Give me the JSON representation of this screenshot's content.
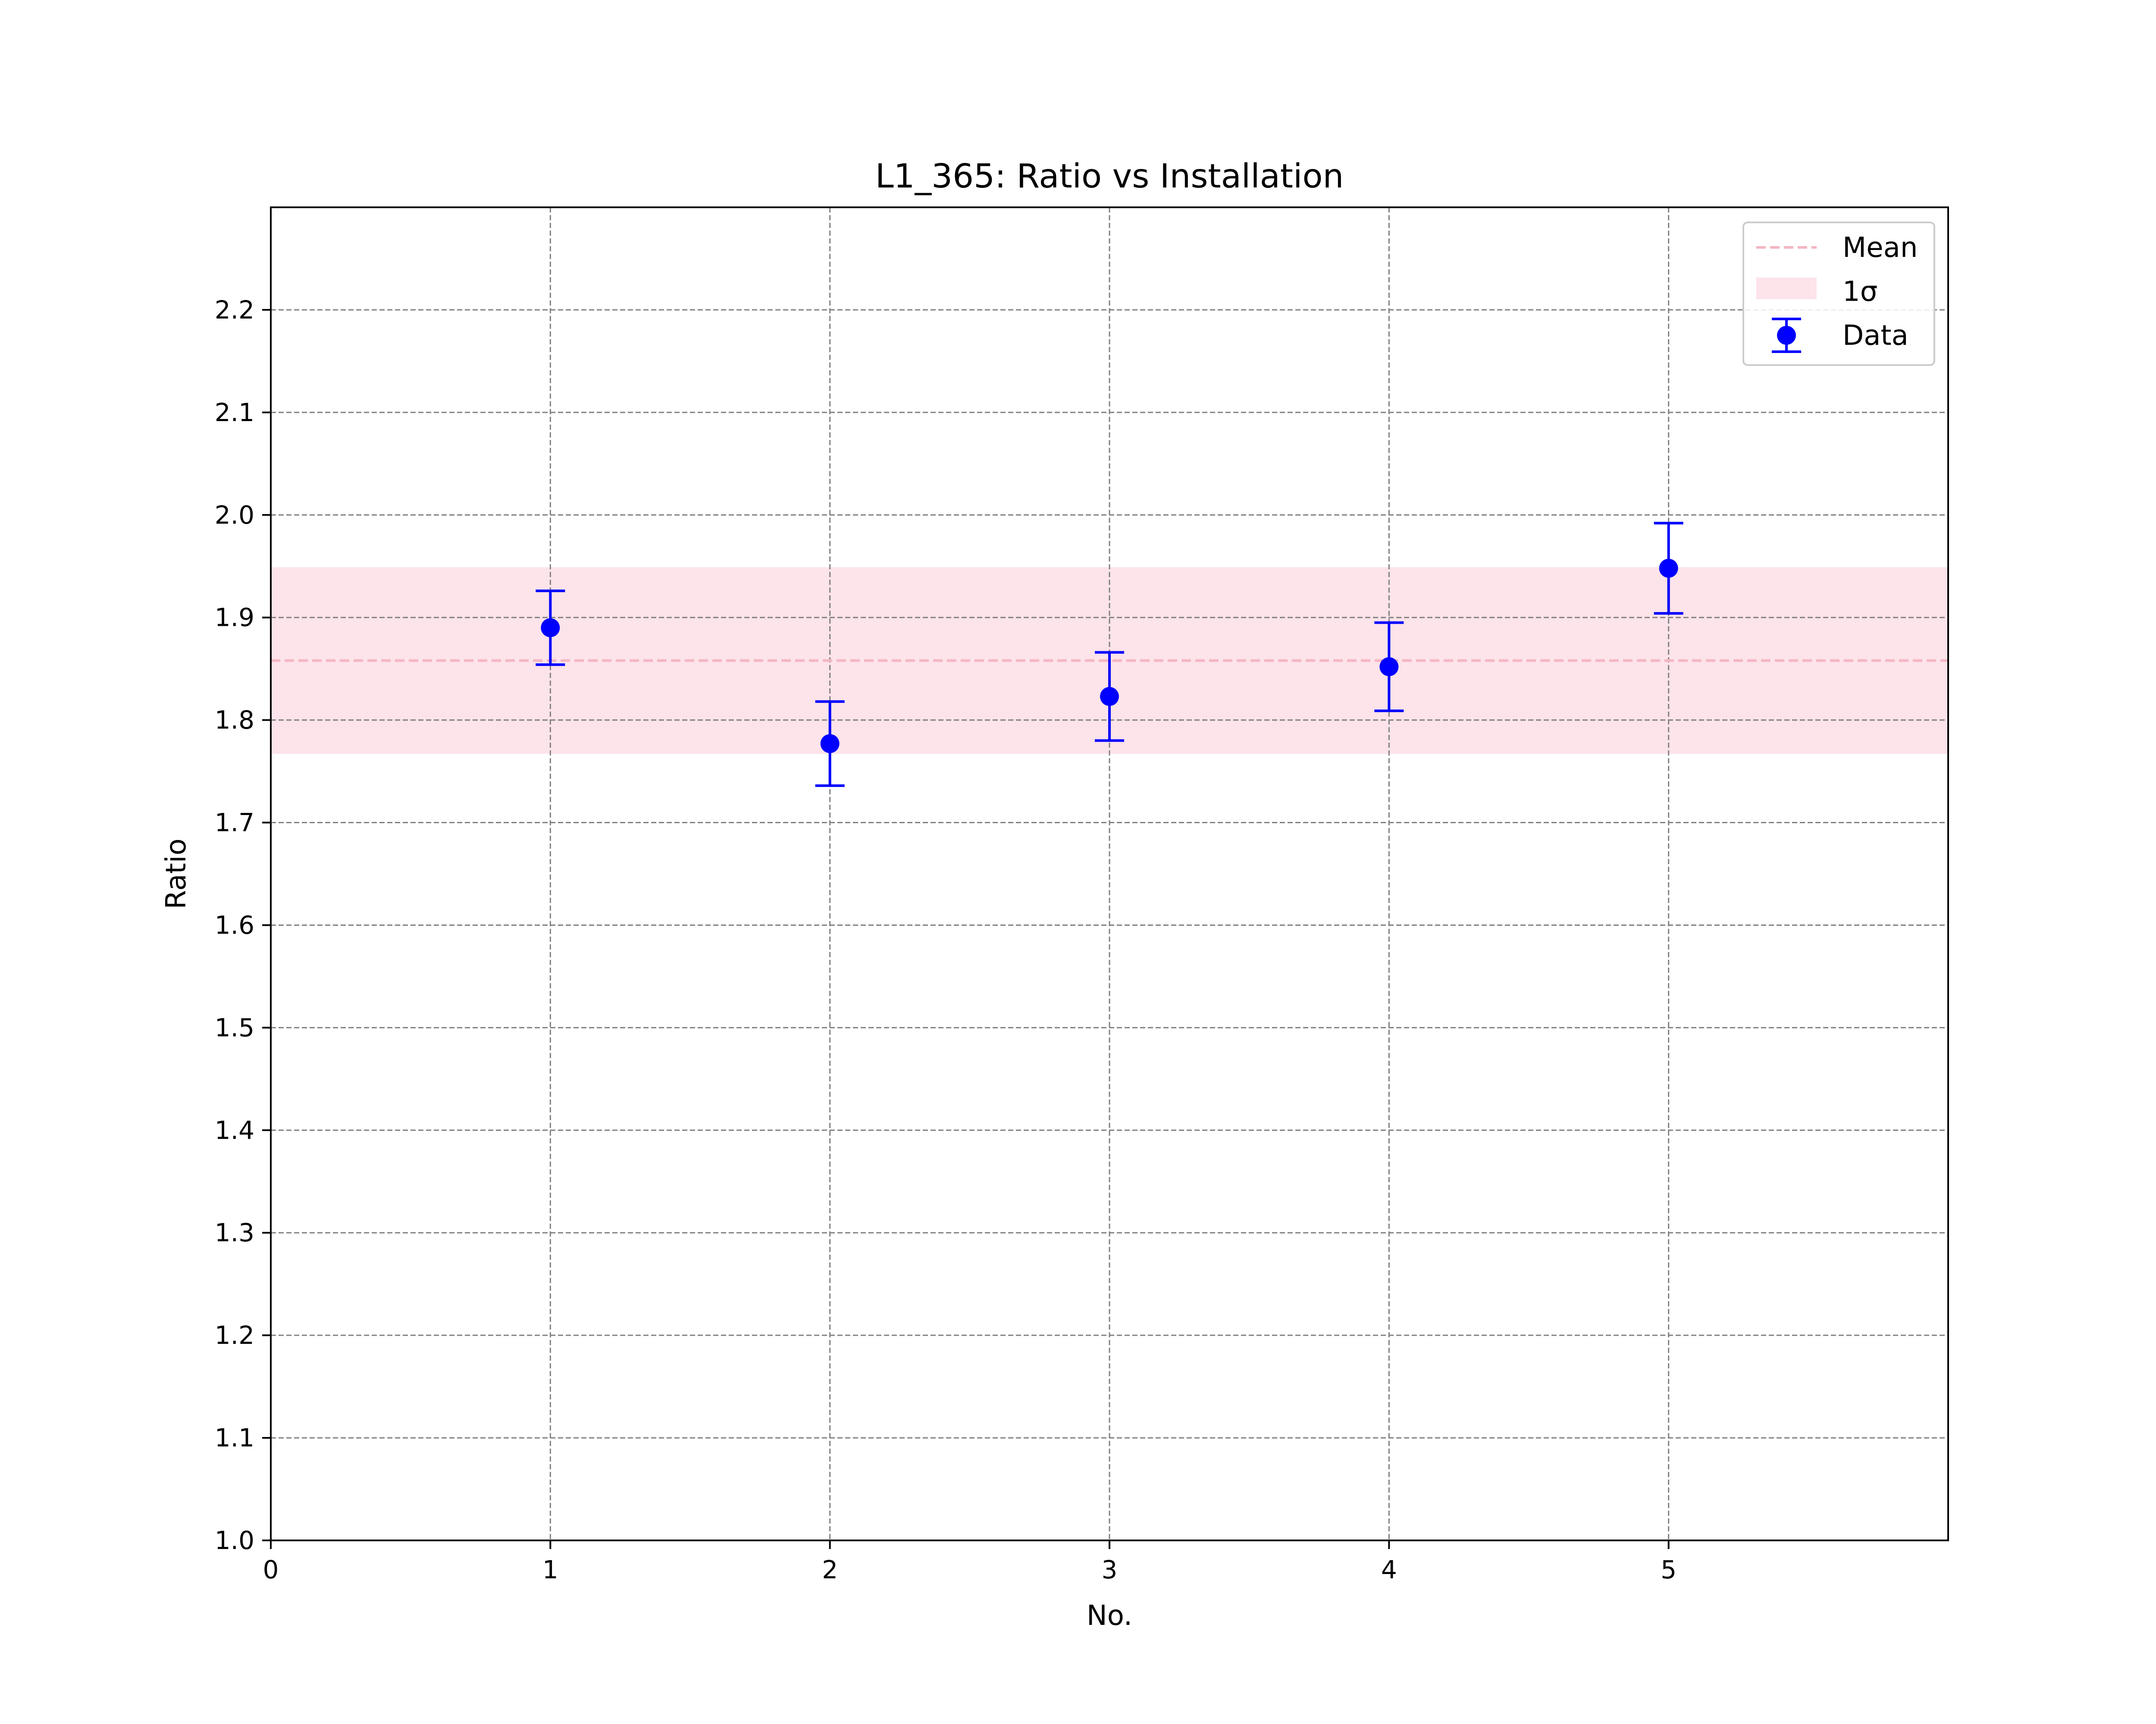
{
  "chart_data": {
    "type": "scatter",
    "title": "L1_365: Ratio vs Installation",
    "xlabel": "No.",
    "ylabel": "Ratio",
    "xlim": [
      0,
      6
    ],
    "ylim": [
      1.0,
      2.3
    ],
    "xticks": [
      "0",
      "1",
      "2",
      "3",
      "4",
      "5"
    ],
    "yticks": [
      "1.0",
      "1.1",
      "1.2",
      "1.3",
      "1.4",
      "1.5",
      "1.6",
      "1.7",
      "1.8",
      "1.9",
      "2.0",
      "2.1",
      "2.2"
    ],
    "grid": true,
    "legend_position": "top-right",
    "series": [
      {
        "name": "Data",
        "color": "#0000ff",
        "x": [
          1,
          2,
          3,
          4,
          5
        ],
        "y": [
          1.89,
          1.777,
          1.823,
          1.852,
          1.948
        ],
        "yerr": [
          0.036,
          0.041,
          0.043,
          0.043,
          0.044
        ]
      }
    ],
    "mean": {
      "name": "Mean",
      "value": 1.858,
      "color": "#f4b6c2"
    },
    "band": {
      "name": "1σ",
      "lower": 1.767,
      "upper": 1.949,
      "color": "#fde3ea"
    }
  }
}
